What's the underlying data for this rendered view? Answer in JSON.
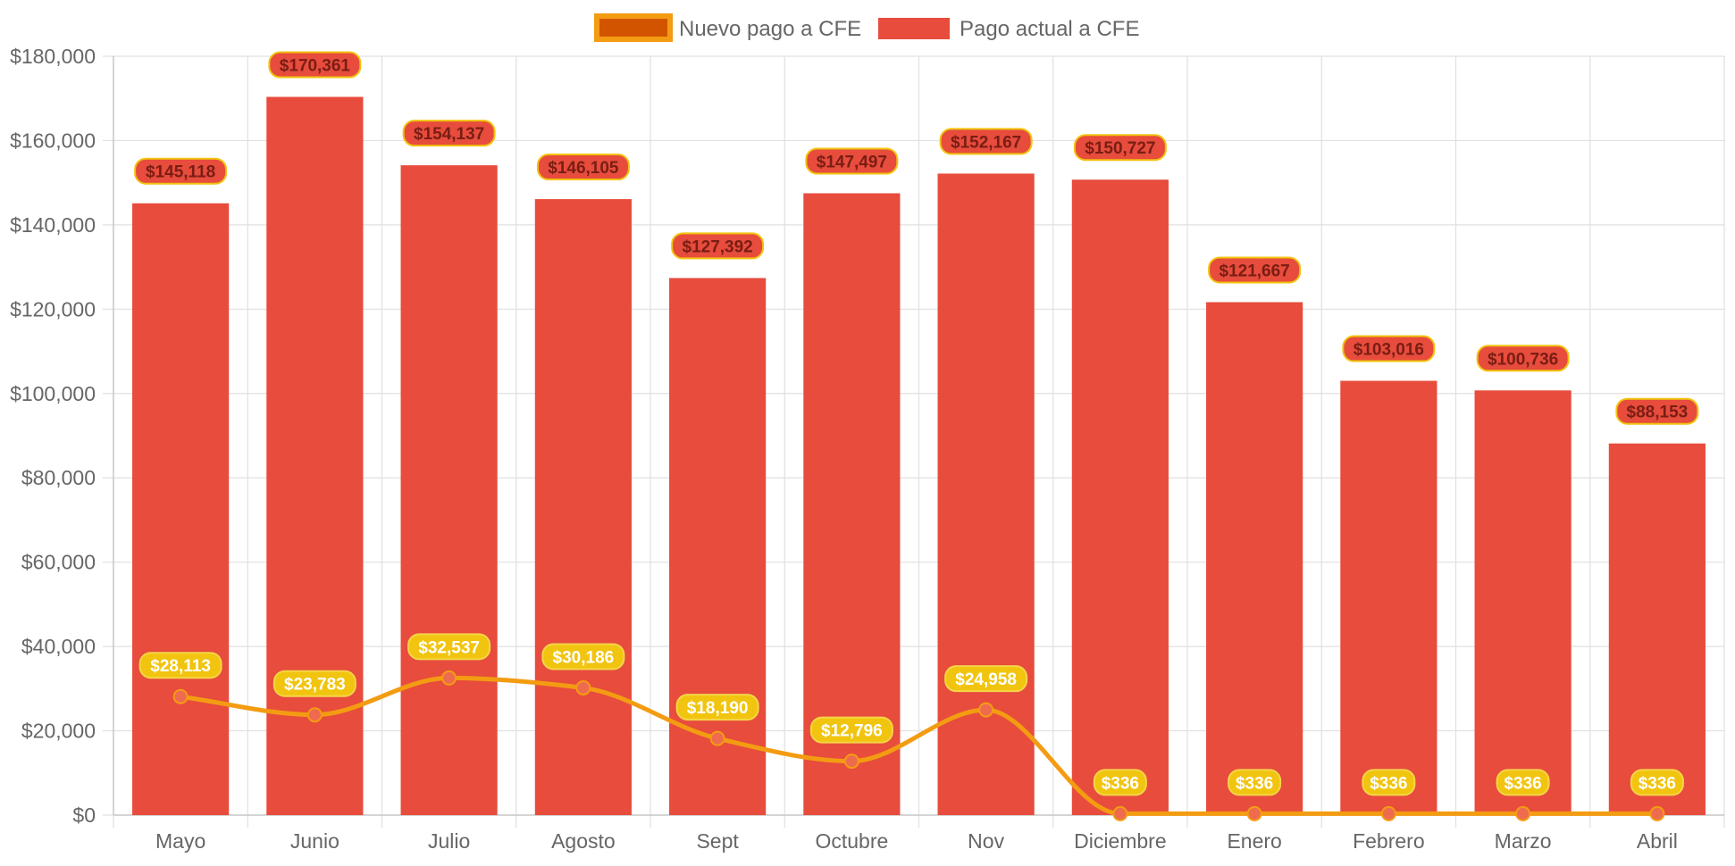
{
  "chart_data": {
    "type": "bar",
    "categories": [
      "Mayo",
      "Junio",
      "Julio",
      "Agosto",
      "Sept",
      "Octubre",
      "Nov",
      "Diciembre",
      "Enero",
      "Febrero",
      "Marzo",
      "Abril"
    ],
    "series": [
      {
        "name": "Nuevo pago a CFE",
        "type": "line",
        "values": [
          28113,
          23783,
          32537,
          30186,
          18190,
          12796,
          24958,
          336,
          336,
          336,
          336,
          336
        ],
        "labels": [
          "$28,113",
          "$23,783",
          "$32,537",
          "$30,186",
          "$18,190",
          "$12,796",
          "$24,958",
          "$336",
          "$336",
          "$336",
          "$336",
          "$336"
        ]
      },
      {
        "name": "Pago actual a CFE",
        "type": "bar",
        "values": [
          145118,
          170361,
          154137,
          146105,
          127392,
          147497,
          152167,
          150727,
          121667,
          103016,
          100736,
          88153
        ],
        "labels": [
          "$145,118",
          "$170,361",
          "$154,137",
          "$146,105",
          "$127,392",
          "$147,497",
          "$152,167",
          "$150,727",
          "$121,667",
          "$103,016",
          "$100,736",
          "$88,153"
        ]
      }
    ],
    "y_ticks": [
      "$0",
      "$20,000",
      "$40,000",
      "$60,000",
      "$80,000",
      "$100,000",
      "$120,000",
      "$140,000",
      "$160,000",
      "$180,000"
    ],
    "ylim": [
      0,
      180000
    ],
    "title": "",
    "xlabel": "",
    "ylabel": "",
    "grid": true,
    "legend_position": "top-center",
    "colors": {
      "bar": "#e74c3c",
      "line": "#f39c12",
      "line_label_bg": "#f1c40f",
      "line_point": "#ef6b4f",
      "legend_line_swatch_fill": "#d35400",
      "grid": "#e0e0e0",
      "axis": "#c8c8c8"
    }
  }
}
